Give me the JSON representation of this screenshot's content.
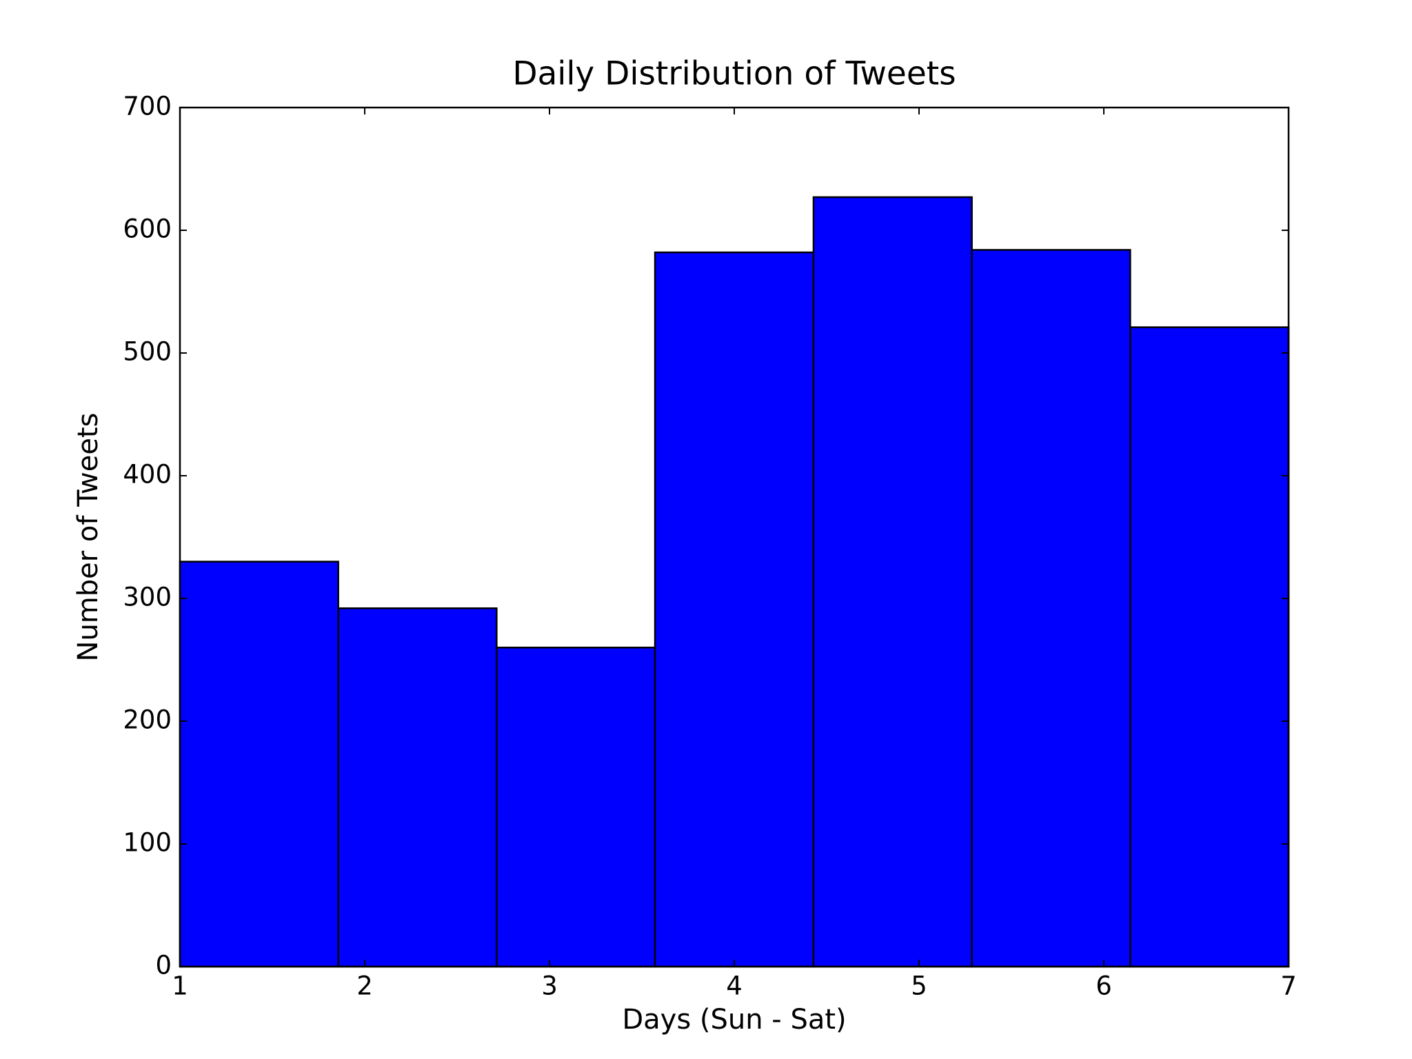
{
  "chart_data": {
    "type": "histogram",
    "title": "Daily Distribution of Tweets",
    "x_label": "Days (Sun - Sat)",
    "y_label": "Number of Tweets",
    "bins": [
      1,
      1.857,
      2.714,
      3.571,
      4.429,
      5.286,
      6.143,
      7
    ],
    "values": [
      330,
      292,
      260,
      582,
      627,
      584,
      521
    ],
    "color": "#0000ff",
    "xlim": [
      1,
      7
    ],
    "xticks": [
      1,
      2,
      3,
      4,
      5,
      6,
      7
    ],
    "ylim": [
      0,
      700
    ],
    "yticks": [
      0,
      100,
      200,
      300,
      400,
      500,
      600,
      700
    ],
    "grid": false
  }
}
